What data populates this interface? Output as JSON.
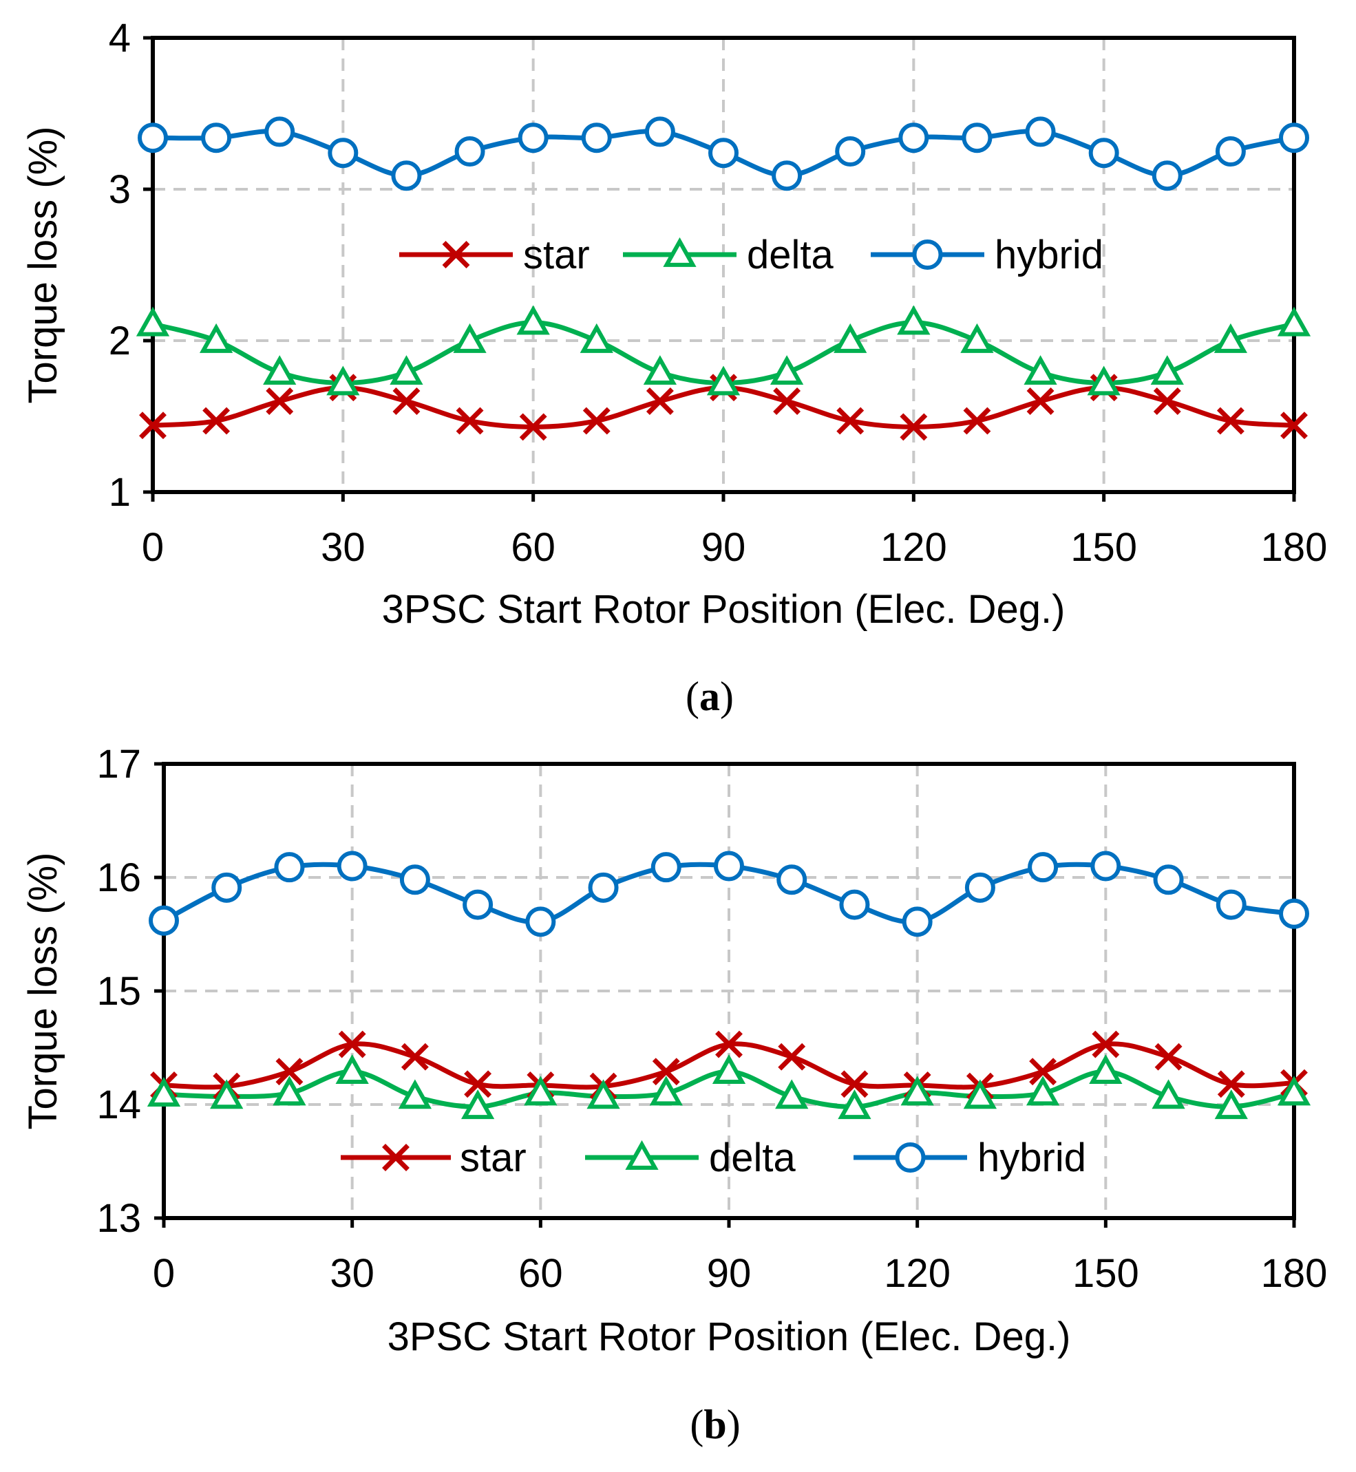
{
  "colors": {
    "star": "#C00000",
    "delta": "#00B050",
    "hybrid": "#0070C0"
  },
  "chart_data": [
    {
      "type": "line",
      "panel": "a",
      "caption": "a",
      "xlabel": "3PSC Start Rotor Position (Elec. Deg.)",
      "ylabel": "Torque loss (%)",
      "xlim": [
        0,
        180
      ],
      "ylim": [
        1,
        4
      ],
      "xticks": [
        0,
        30,
        60,
        90,
        120,
        150,
        180
      ],
      "yticks": [
        1,
        2,
        3,
        4
      ],
      "x": [
        0,
        10,
        20,
        30,
        40,
        50,
        60,
        70,
        80,
        90,
        100,
        110,
        120,
        130,
        140,
        150,
        160,
        170,
        180
      ],
      "grid": true,
      "legend_position": "center",
      "series": [
        {
          "name": "star",
          "marker": "x",
          "color_key": "star",
          "values": [
            1.44,
            1.47,
            1.6,
            1.69,
            1.6,
            1.47,
            1.43,
            1.47,
            1.6,
            1.69,
            1.6,
            1.47,
            1.43,
            1.47,
            1.6,
            1.69,
            1.6,
            1.47,
            1.44
          ]
        },
        {
          "name": "delta",
          "marker": "triangle",
          "color_key": "delta",
          "values": [
            2.11,
            2.0,
            1.79,
            1.72,
            1.79,
            2.0,
            2.12,
            2.0,
            1.79,
            1.72,
            1.79,
            2.0,
            2.12,
            2.0,
            1.79,
            1.72,
            1.79,
            2.0,
            2.11
          ]
        },
        {
          "name": "hybrid",
          "marker": "circle",
          "color_key": "hybrid",
          "values": [
            3.34,
            3.34,
            3.38,
            3.24,
            3.09,
            3.25,
            3.34,
            3.34,
            3.38,
            3.24,
            3.09,
            3.25,
            3.34,
            3.34,
            3.38,
            3.24,
            3.09,
            3.25,
            3.34
          ]
        }
      ]
    },
    {
      "type": "line",
      "panel": "b",
      "caption": "b",
      "xlabel": "3PSC Start Rotor Position (Elec. Deg.)",
      "ylabel": "Torque loss (%)",
      "xlim": [
        0,
        180
      ],
      "ylim": [
        13,
        17
      ],
      "xticks": [
        0,
        30,
        60,
        90,
        120,
        150,
        180
      ],
      "yticks": [
        13,
        14,
        15,
        16,
        17
      ],
      "x": [
        0,
        10,
        20,
        30,
        40,
        50,
        60,
        70,
        80,
        90,
        100,
        110,
        120,
        130,
        140,
        150,
        160,
        170,
        180
      ],
      "grid": true,
      "legend_position": "bottom",
      "series": [
        {
          "name": "star",
          "marker": "x",
          "color_key": "star",
          "values": [
            14.17,
            14.16,
            14.29,
            14.53,
            14.42,
            14.18,
            14.17,
            14.16,
            14.29,
            14.53,
            14.42,
            14.18,
            14.17,
            14.16,
            14.29,
            14.53,
            14.42,
            14.18,
            14.19
          ]
        },
        {
          "name": "delta",
          "marker": "triangle",
          "color_key": "delta",
          "values": [
            14.09,
            14.07,
            14.1,
            14.29,
            14.07,
            13.98,
            14.1,
            14.07,
            14.1,
            14.29,
            14.07,
            13.98,
            14.1,
            14.07,
            14.1,
            14.29,
            14.07,
            13.98,
            14.1
          ]
        },
        {
          "name": "hybrid",
          "marker": "circle",
          "color_key": "hybrid",
          "values": [
            15.62,
            15.91,
            16.09,
            16.1,
            15.98,
            15.76,
            15.61,
            15.91,
            16.09,
            16.1,
            15.98,
            15.76,
            15.61,
            15.91,
            16.09,
            16.1,
            15.98,
            15.76,
            15.68
          ]
        }
      ]
    }
  ]
}
